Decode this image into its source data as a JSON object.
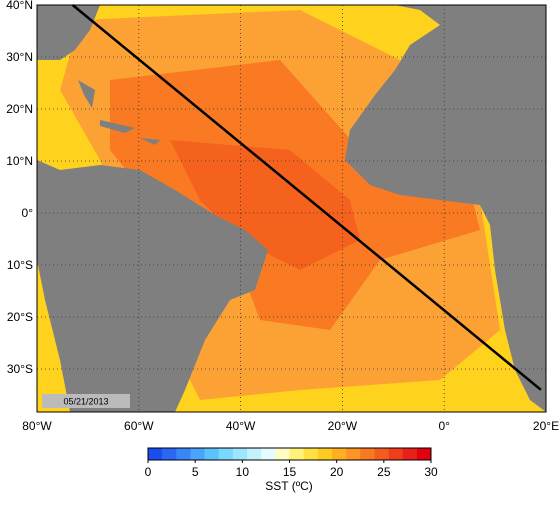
{
  "map": {
    "lon_ticks": [
      {
        "value": -80,
        "label": "80°W"
      },
      {
        "value": -60,
        "label": "60°W"
      },
      {
        "value": -40,
        "label": "40°W"
      },
      {
        "value": -20,
        "label": "20°W"
      },
      {
        "value": 0,
        "label": "0°"
      },
      {
        "value": 20,
        "label": "20°E"
      }
    ],
    "lat_ticks": [
      {
        "value": 40,
        "label": "40°N"
      },
      {
        "value": 30,
        "label": "30°N"
      },
      {
        "value": 20,
        "label": "20°N"
      },
      {
        "value": 10,
        "label": "10°N"
      },
      {
        "value": 0,
        "label": "0°"
      },
      {
        "value": -10,
        "label": "10°S"
      },
      {
        "value": -20,
        "label": "20°S"
      },
      {
        "value": -30,
        "label": "30°S"
      }
    ],
    "date": "05/21/2013",
    "transect": {
      "lon": [
        -73,
        19
      ],
      "lat": [
        40,
        -34
      ]
    },
    "colorbar": {
      "label": "SST (ºC)",
      "range": [
        0,
        30
      ],
      "ticks": [
        0,
        5,
        10,
        15,
        20,
        25,
        30
      ]
    }
  }
}
